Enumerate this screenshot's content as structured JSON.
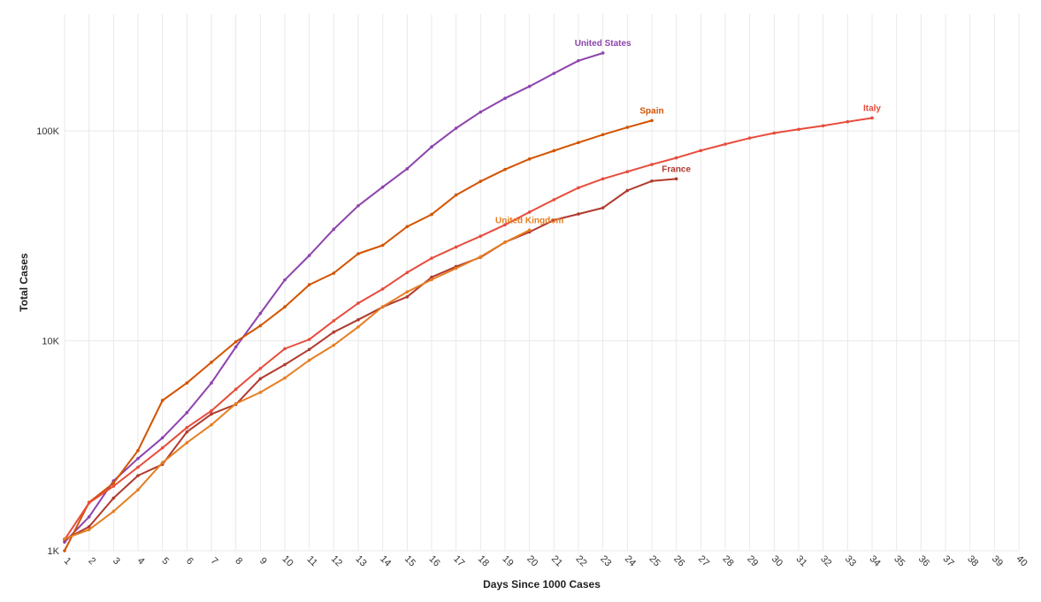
{
  "chart_data": {
    "type": "line",
    "title": "",
    "xlabel": "Days Since 1000 Cases",
    "ylabel": "Total Cases",
    "xlim": [
      1,
      40
    ],
    "ylim": [
      1000,
      360000
    ],
    "y_scale": "log",
    "x_ticks": [
      "1",
      "2",
      "3",
      "4",
      "5",
      "6",
      "7",
      "8",
      "9",
      "10",
      "11",
      "12",
      "13",
      "14",
      "15",
      "16",
      "17",
      "18",
      "19",
      "20",
      "21",
      "22",
      "23",
      "24",
      "25",
      "26",
      "27",
      "28",
      "29",
      "30",
      "31",
      "32",
      "33",
      "34",
      "35",
      "36",
      "37",
      "38",
      "39",
      "40"
    ],
    "y_ticks": [
      {
        "value": 1000,
        "label": "1K"
      },
      {
        "value": 10000,
        "label": "10K"
      },
      {
        "value": 100000,
        "label": "100K"
      }
    ],
    "grid": true,
    "series": [
      {
        "name": "United States",
        "color": "#8e44ad",
        "x": [
          1,
          2,
          3,
          4,
          5,
          6,
          7,
          8,
          9,
          10,
          11,
          12,
          13,
          14,
          15,
          16,
          17,
          18,
          19,
          20,
          21,
          22,
          23
        ],
        "values": [
          1100,
          1450,
          2150,
          2750,
          3450,
          4550,
          6300,
          9350,
          13500,
          19500,
          25500,
          34000,
          44000,
          54000,
          66000,
          84000,
          103000,
          123000,
          143000,
          163000,
          188000,
          216000,
          235000
        ]
      },
      {
        "name": "Spain",
        "color": "#d35400",
        "x": [
          1,
          2,
          3,
          4,
          5,
          6,
          7,
          8,
          9,
          10,
          11,
          12,
          13,
          14,
          15,
          16,
          17,
          18,
          19,
          20,
          21,
          22,
          23,
          24,
          25
        ],
        "values": [
          1000,
          1700,
          2100,
          3000,
          5200,
          6300,
          7900,
          9900,
          11800,
          14500,
          18500,
          21000,
          26000,
          28500,
          35000,
          40000,
          49500,
          57500,
          65500,
          73500,
          80500,
          88000,
          96000,
          104000,
          112000
        ]
      },
      {
        "name": "Italy",
        "color": "#e74c3c",
        "x": [
          1,
          2,
          3,
          4,
          5,
          6,
          7,
          8,
          9,
          10,
          11,
          12,
          13,
          14,
          15,
          16,
          17,
          18,
          19,
          20,
          21,
          22,
          23,
          24,
          25,
          26,
          27,
          28,
          29,
          30,
          31,
          32,
          33,
          34
        ],
        "values": [
          1130,
          1690,
          2030,
          2500,
          3090,
          3860,
          4640,
          5880,
          7380,
          9170,
          10150,
          12460,
          15110,
          17660,
          21160,
          24750,
          27980,
          31500,
          35710,
          41040,
          47020,
          53580,
          59140,
          63930,
          69180,
          74390,
          80590,
          86500,
          92470,
          97690,
          101740,
          105790,
          110570,
          115240
        ]
      },
      {
        "name": "France",
        "color": "#b03a2e",
        "x": [
          1,
          2,
          3,
          4,
          5,
          6,
          7,
          8,
          9,
          10,
          11,
          12,
          13,
          14,
          15,
          16,
          17,
          18,
          19,
          20,
          21,
          22,
          23,
          24,
          25,
          26
        ],
        "values": [
          1130,
          1300,
          1780,
          2280,
          2580,
          3680,
          4480,
          4980,
          6600,
          7700,
          9100,
          11000,
          12600,
          14500,
          16200,
          20100,
          22600,
          25000,
          29500,
          33000,
          37600,
          40200,
          43000,
          52000,
          57700,
          59100
        ]
      },
      {
        "name": "United Kingdom",
        "color": "#e67e22",
        "x": [
          1,
          2,
          3,
          4,
          5,
          6,
          7,
          8,
          9,
          10,
          11,
          12,
          13,
          14,
          15,
          16,
          17,
          18,
          19,
          20
        ],
        "values": [
          1140,
          1260,
          1540,
          1950,
          2630,
          3270,
          3980,
          5020,
          5680,
          6650,
          8080,
          9530,
          11650,
          14550,
          17100,
          19550,
          22150,
          25150,
          29500,
          33700
        ]
      }
    ]
  }
}
